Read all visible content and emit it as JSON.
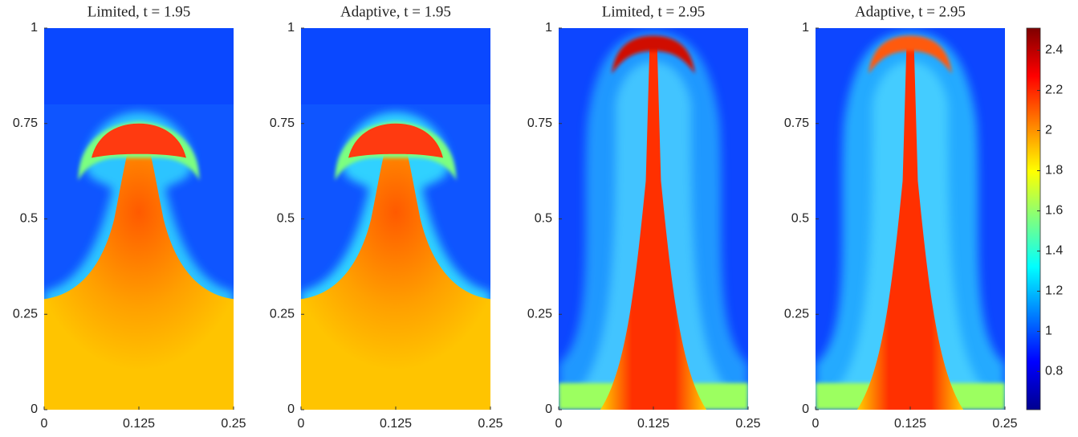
{
  "chart_data": [
    {
      "type": "heatmap",
      "title": "Limited, t = 1.95",
      "xlim": [
        0,
        0.25
      ],
      "ylim": [
        0,
        1
      ],
      "xticks": [
        0,
        0.125,
        0.25
      ],
      "yticks": [
        0,
        0.25,
        0.5,
        0.75,
        1
      ]
    },
    {
      "type": "heatmap",
      "title": "Adaptive, t = 1.95",
      "xlim": [
        0,
        0.25
      ],
      "ylim": [
        0,
        1
      ],
      "xticks": [
        0,
        0.125,
        0.25
      ],
      "yticks": [
        0,
        0.25,
        0.5,
        0.75,
        1
      ]
    },
    {
      "type": "heatmap",
      "title": "Limited, t = 2.95",
      "xlim": [
        0,
        0.25
      ],
      "ylim": [
        0,
        1
      ],
      "xticks": [
        0,
        0.125,
        0.25
      ],
      "yticks": [
        0,
        0.25,
        0.5,
        0.75,
        1
      ]
    },
    {
      "type": "heatmap",
      "title": "Adaptive, t = 2.95",
      "xlim": [
        0,
        0.25
      ],
      "ylim": [
        0,
        1
      ],
      "xticks": [
        0,
        0.125,
        0.25
      ],
      "yticks": [
        0,
        0.25,
        0.5,
        0.75,
        1
      ]
    }
  ],
  "colorbar": {
    "colormap": "jet",
    "clim": [
      0.61,
      2.51
    ],
    "ticks": [
      0.8,
      1,
      1.2,
      1.4,
      1.6,
      1.8,
      2,
      2.2,
      2.4
    ]
  }
}
